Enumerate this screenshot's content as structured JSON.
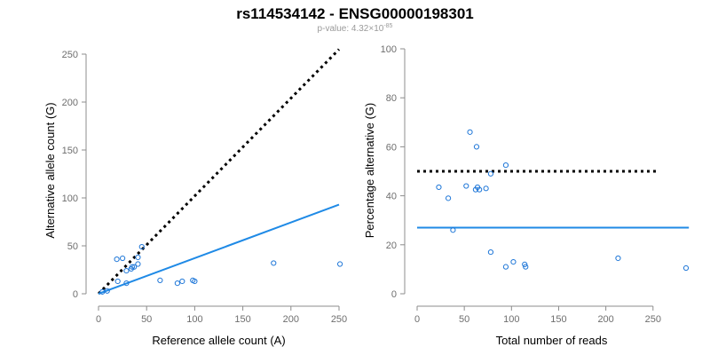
{
  "title": "rs114534142 - ENSG00000198301",
  "subtitle": {
    "prefix": "p-value: 4.32×10",
    "exponent": "-85"
  },
  "colors": {
    "points": "#1f77d8",
    "fit_line": "#1f8ae6",
    "reference_line": "#000000",
    "axis": "#8c8c8c"
  },
  "chart_data": [
    {
      "type": "scatter",
      "xlabel": "Reference allele count (A)",
      "ylabel": "Alternative allele count (G)",
      "xlim": [
        0,
        250
      ],
      "ylim": [
        0,
        250
      ],
      "xticks": [
        0,
        50,
        100,
        150,
        200,
        250
      ],
      "yticks": [
        0,
        50,
        100,
        150,
        200,
        250
      ],
      "points": [
        {
          "x": 4,
          "y": 2
        },
        {
          "x": 9,
          "y": 3
        },
        {
          "x": 19,
          "y": 36
        },
        {
          "x": 20,
          "y": 13
        },
        {
          "x": 25,
          "y": 37
        },
        {
          "x": 29,
          "y": 11
        },
        {
          "x": 29,
          "y": 24
        },
        {
          "x": 34,
          "y": 26
        },
        {
          "x": 35,
          "y": 28
        },
        {
          "x": 37,
          "y": 28
        },
        {
          "x": 41,
          "y": 31
        },
        {
          "x": 41,
          "y": 38
        },
        {
          "x": 45,
          "y": 49
        },
        {
          "x": 64,
          "y": 14
        },
        {
          "x": 82,
          "y": 11
        },
        {
          "x": 87,
          "y": 13
        },
        {
          "x": 98,
          "y": 14
        },
        {
          "x": 100,
          "y": 13
        },
        {
          "x": 182,
          "y": 32
        },
        {
          "x": 251,
          "y": 31
        }
      ],
      "lines": [
        {
          "kind": "reference",
          "style": "dotted",
          "points": [
            [
              0,
              0
            ],
            [
              250,
              255
            ]
          ]
        },
        {
          "kind": "fit",
          "style": "solid",
          "points": [
            [
              0,
              0
            ],
            [
              250,
              93
            ]
          ]
        }
      ]
    },
    {
      "type": "scatter",
      "xlabel": "Total number of reads",
      "ylabel": "Percentage alternative (G)",
      "xlim": [
        0,
        285
      ],
      "ylim": [
        0,
        100
      ],
      "xticks": [
        0,
        50,
        100,
        150,
        200,
        250
      ],
      "yticks": [
        0,
        20,
        40,
        60,
        80,
        100
      ],
      "points": [
        {
          "x": 23,
          "y": 43.5
        },
        {
          "x": 33,
          "y": 39
        },
        {
          "x": 38,
          "y": 26
        },
        {
          "x": 52,
          "y": 44
        },
        {
          "x": 56,
          "y": 66
        },
        {
          "x": 62,
          "y": 42.5
        },
        {
          "x": 63,
          "y": 60
        },
        {
          "x": 64,
          "y": 43.5
        },
        {
          "x": 66,
          "y": 42.5
        },
        {
          "x": 73,
          "y": 43
        },
        {
          "x": 78,
          "y": 49
        },
        {
          "x": 78,
          "y": 17
        },
        {
          "x": 94,
          "y": 52.5
        },
        {
          "x": 94,
          "y": 11
        },
        {
          "x": 102,
          "y": 13
        },
        {
          "x": 114,
          "y": 12
        },
        {
          "x": 115,
          "y": 11
        },
        {
          "x": 213,
          "y": 14.5
        },
        {
          "x": 285,
          "y": 10.5
        }
      ],
      "lines": [
        {
          "kind": "reference",
          "style": "dotted",
          "points": [
            [
              0,
              50
            ],
            [
              256,
              50
            ]
          ]
        },
        {
          "kind": "fit",
          "style": "solid",
          "points": [
            [
              0,
              27
            ],
            [
              288,
              27
            ]
          ]
        }
      ]
    }
  ]
}
